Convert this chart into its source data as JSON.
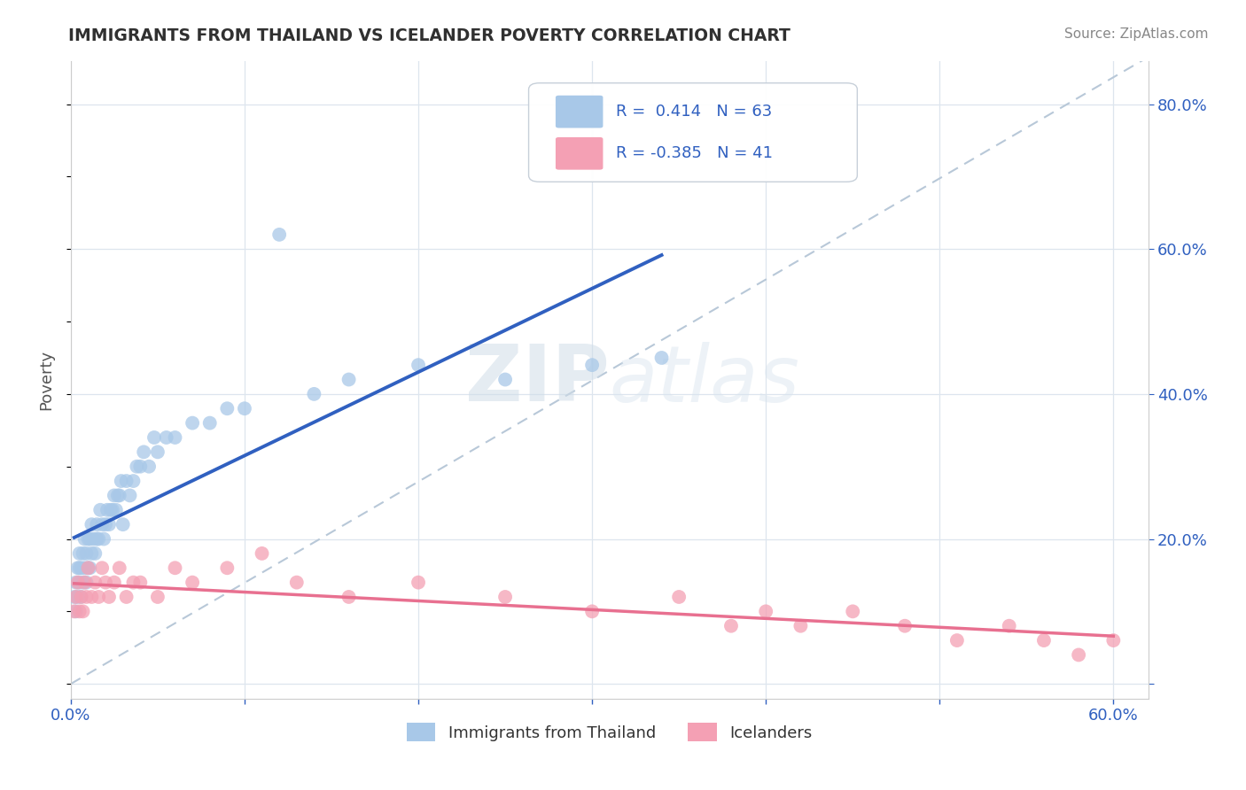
{
  "title": "IMMIGRANTS FROM THAILAND VS ICELANDER POVERTY CORRELATION CHART",
  "source": "Source: ZipAtlas.com",
  "ylabel": "Poverty",
  "xlim": [
    0.0,
    0.62
  ],
  "ylim": [
    -0.02,
    0.86
  ],
  "ytick_positions_right": [
    0.0,
    0.2,
    0.4,
    0.6,
    0.8
  ],
  "ytick_labels_right": [
    "",
    "20.0%",
    "40.0%",
    "60.0%",
    "80.0%"
  ],
  "R_thailand": 0.414,
  "N_thailand": 63,
  "R_iceland": -0.385,
  "N_iceland": 41,
  "color_thailand": "#a8c8e8",
  "color_iceland": "#f4a0b4",
  "line_color_thailand": "#3060c0",
  "line_color_iceland": "#e87090",
  "trend_line_color": "#b8c8d8",
  "background_color": "#ffffff",
  "grid_color": "#dde5ee",
  "title_color": "#303030",
  "legend_text_color": "#3060c0",
  "axis_label_color": "#3060c0",
  "thailand_x": [
    0.002,
    0.003,
    0.003,
    0.004,
    0.004,
    0.005,
    0.005,
    0.005,
    0.006,
    0.006,
    0.007,
    0.007,
    0.008,
    0.008,
    0.009,
    0.009,
    0.01,
    0.01,
    0.011,
    0.011,
    0.012,
    0.012,
    0.013,
    0.014,
    0.015,
    0.015,
    0.016,
    0.017,
    0.018,
    0.019,
    0.02,
    0.021,
    0.022,
    0.023,
    0.024,
    0.025,
    0.026,
    0.027,
    0.028,
    0.029,
    0.03,
    0.032,
    0.034,
    0.036,
    0.038,
    0.04,
    0.042,
    0.045,
    0.048,
    0.05,
    0.055,
    0.06,
    0.07,
    0.08,
    0.09,
    0.1,
    0.12,
    0.14,
    0.16,
    0.2,
    0.25,
    0.3,
    0.34
  ],
  "thailand_y": [
    0.12,
    0.1,
    0.14,
    0.12,
    0.16,
    0.14,
    0.16,
    0.18,
    0.12,
    0.16,
    0.14,
    0.18,
    0.16,
    0.2,
    0.14,
    0.18,
    0.16,
    0.2,
    0.16,
    0.2,
    0.18,
    0.22,
    0.2,
    0.18,
    0.2,
    0.22,
    0.2,
    0.24,
    0.22,
    0.2,
    0.22,
    0.24,
    0.22,
    0.24,
    0.24,
    0.26,
    0.24,
    0.26,
    0.26,
    0.28,
    0.22,
    0.28,
    0.26,
    0.28,
    0.3,
    0.3,
    0.32,
    0.3,
    0.34,
    0.32,
    0.34,
    0.34,
    0.36,
    0.36,
    0.38,
    0.38,
    0.62,
    0.4,
    0.42,
    0.44,
    0.42,
    0.44,
    0.45
  ],
  "iceland_x": [
    0.002,
    0.003,
    0.004,
    0.005,
    0.006,
    0.007,
    0.008,
    0.009,
    0.01,
    0.012,
    0.014,
    0.016,
    0.018,
    0.02,
    0.022,
    0.025,
    0.028,
    0.032,
    0.036,
    0.04,
    0.05,
    0.06,
    0.07,
    0.09,
    0.11,
    0.13,
    0.16,
    0.2,
    0.25,
    0.3,
    0.35,
    0.38,
    0.4,
    0.42,
    0.45,
    0.48,
    0.51,
    0.54,
    0.56,
    0.58,
    0.6
  ],
  "iceland_y": [
    0.1,
    0.12,
    0.14,
    0.1,
    0.12,
    0.1,
    0.14,
    0.12,
    0.16,
    0.12,
    0.14,
    0.12,
    0.16,
    0.14,
    0.12,
    0.14,
    0.16,
    0.12,
    0.14,
    0.14,
    0.12,
    0.16,
    0.14,
    0.16,
    0.18,
    0.14,
    0.12,
    0.14,
    0.12,
    0.1,
    0.12,
    0.08,
    0.1,
    0.08,
    0.1,
    0.08,
    0.06,
    0.08,
    0.06,
    0.04,
    0.06
  ]
}
